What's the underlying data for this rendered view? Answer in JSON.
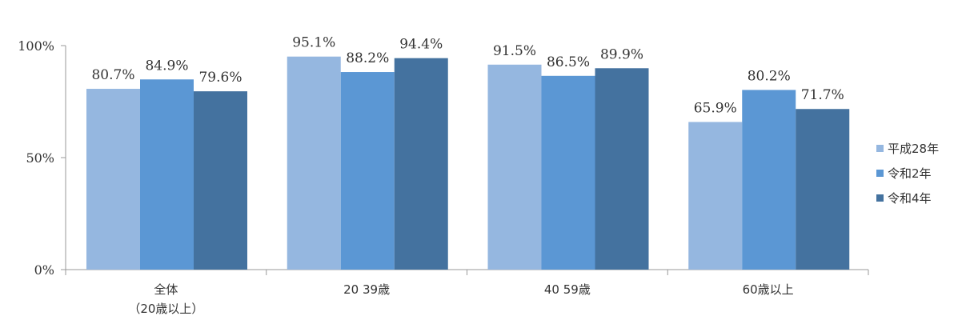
{
  "chart_data": {
    "type": "bar",
    "categories": [
      [
        "全体",
        "（20歳以上）"
      ],
      [
        "20 39歳"
      ],
      [
        "40 59歳"
      ],
      [
        "60歳以上"
      ]
    ],
    "series": [
      {
        "name": "平成28年",
        "color": "#95b7e0",
        "values": [
          80.7,
          95.1,
          91.5,
          65.9
        ]
      },
      {
        "name": "令和2年",
        "color": "#5b97d4",
        "values": [
          84.9,
          88.2,
          86.5,
          80.2
        ]
      },
      {
        "name": "令和4年",
        "color": "#44729f",
        "values": [
          79.6,
          94.4,
          89.9,
          71.7
        ]
      }
    ],
    "value_labels": [
      [
        "80.7%",
        "95.1%",
        "91.5%",
        "65.9%"
      ],
      [
        "84.9%",
        "88.2%",
        "86.5%",
        "80.2%"
      ],
      [
        "79.6%",
        "94.4%",
        "89.9%",
        "71.7%"
      ]
    ],
    "y_ticks": [
      {
        "value": 0,
        "label": "0%"
      },
      {
        "value": 50,
        "label": "50%"
      },
      {
        "value": 100,
        "label": "100%"
      }
    ],
    "ylim": [
      0,
      100
    ],
    "grid": false,
    "legend_position": "right",
    "axis_color": "#999999"
  }
}
